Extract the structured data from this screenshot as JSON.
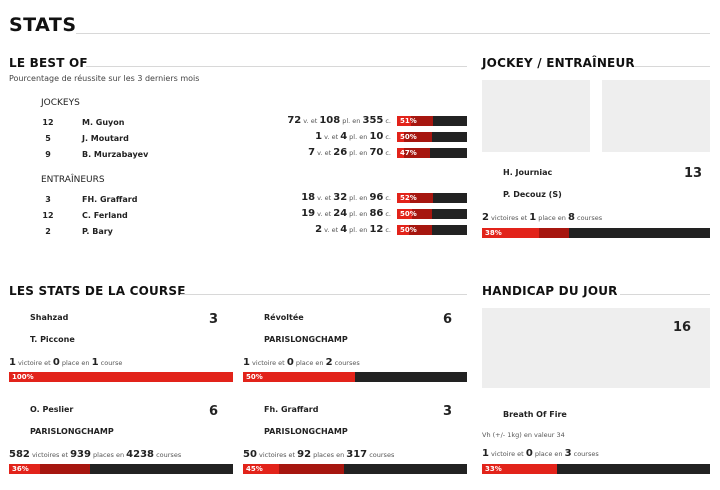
{
  "page": {
    "title": "STATS"
  },
  "best_of": {
    "title": "LE BEST OF",
    "subtitle": "Pourcentage de réussite sur les 3 derniers mois",
    "jockeys_label": "JOCKEYS",
    "jockeys": [
      {
        "num": "12",
        "name": "M. Guyon",
        "v": "72",
        "pl": "108",
        "c": "355",
        "pct_label": "51%",
        "win_pct": 20,
        "place_pct": 51
      },
      {
        "num": "5",
        "name": "J. Moutard",
        "v": "1",
        "pl": "4",
        "c": "10",
        "pct_label": "50%",
        "win_pct": 10,
        "place_pct": 50
      },
      {
        "num": "9",
        "name": "B. Murzabayev",
        "v": "7",
        "pl": "26",
        "c": "70",
        "pct_label": "47%",
        "win_pct": 10,
        "place_pct": 47
      }
    ],
    "trainers_label": "ENTRAÎNEURS",
    "trainers": [
      {
        "num": "3",
        "name": "FH. Graffard",
        "v": "18",
        "pl": "32",
        "c": "96",
        "pct_label": "52%",
        "win_pct": 19,
        "place_pct": 52
      },
      {
        "num": "12",
        "name": "C. Ferland",
        "v": "19",
        "pl": "24",
        "c": "86",
        "pct_label": "50%",
        "win_pct": 22,
        "place_pct": 50
      },
      {
        "num": "2",
        "name": "P. Bary",
        "v": "2",
        "pl": "4",
        "c": "12",
        "pct_label": "50%",
        "win_pct": 17,
        "place_pct": 50
      }
    ],
    "words": {
      "v": "v. et",
      "pl": "pl. en",
      "c": "c."
    }
  },
  "jockey_trainer": {
    "title": "JOCKEY / ENTRAÎNEUR",
    "jockey": "H. Journiac",
    "trainer": "P. Decouz (S)",
    "num": "13",
    "victoires": "2",
    "places": "1",
    "courses": "8",
    "pct_label": "38%",
    "win_pct": 25,
    "place_pct": 38
  },
  "course_stats": {
    "title": "LES STATS DE LA COURSE",
    "cards": [
      {
        "name": "Shahzad",
        "sub": "T. Piccone",
        "num": "3",
        "victoires": "1",
        "places": "0",
        "courses": "1",
        "courses_word": "course",
        "pct_label": "100%",
        "win_pct": 100,
        "place_pct": 100
      },
      {
        "name": "Révoltée",
        "sub": "PARISLONGCHAMP",
        "num": "6",
        "victoires": "1",
        "places": "0",
        "courses": "2",
        "courses_word": "courses",
        "pct_label": "50%",
        "win_pct": 50,
        "place_pct": 50
      },
      {
        "name": "O. Peslier",
        "sub": "PARISLONGCHAMP",
        "num": "6",
        "victoires": "582",
        "places": "939",
        "courses": "4238",
        "courses_word": "courses",
        "pct_label": "36%",
        "win_pct": 14,
        "place_pct": 36
      },
      {
        "name": "Fh. Graffard",
        "sub": "PARISLONGCHAMP",
        "num": "3",
        "victoires": "50",
        "places": "92",
        "courses": "317",
        "courses_word": "courses",
        "pct_label": "45%",
        "win_pct": 16,
        "place_pct": 45
      }
    ],
    "words": {
      "victoires_single": "victoire et",
      "victoires_plural": "victoires et",
      "place_single": "place en",
      "places_plural": "places en"
    }
  },
  "handicap": {
    "title": "HANDICAP DU JOUR",
    "num": "16",
    "name": "Breath Of Fire",
    "info": "Vh (+/- 1kg) en valeur 34",
    "victoires": "1",
    "places": "0",
    "courses": "3",
    "pct_label": "33%",
    "win_pct": 33,
    "place_pct": 33
  },
  "colors": {
    "win": "#e2231a",
    "place": "#a6160f",
    "bar_bg": "#222222",
    "card_bg": "#eeeeee"
  }
}
